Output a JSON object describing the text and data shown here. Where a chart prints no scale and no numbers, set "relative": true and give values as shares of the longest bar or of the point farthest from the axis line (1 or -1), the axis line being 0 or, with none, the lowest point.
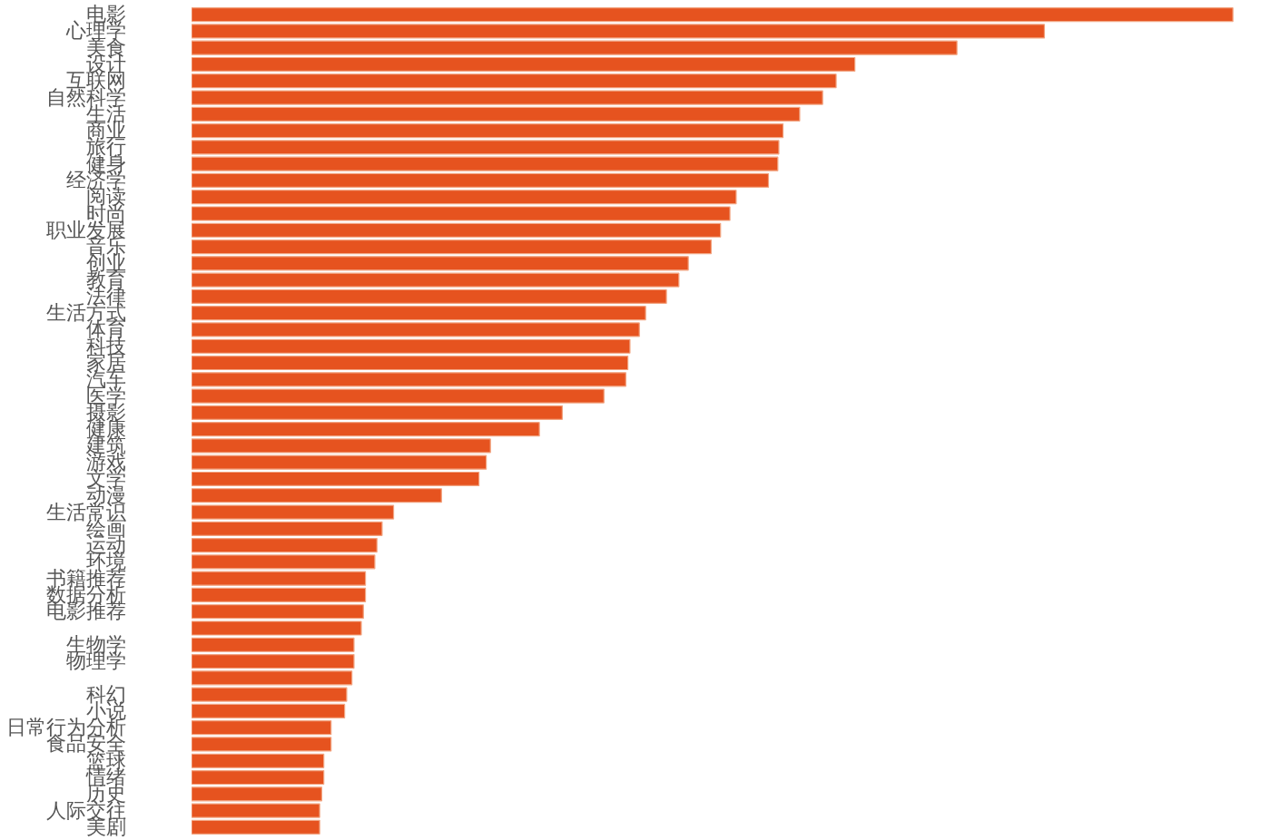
{
  "chart_data": {
    "type": "bar",
    "orientation": "horizontal",
    "relative": true,
    "color": "#e6531f",
    "grid": false,
    "categories": [
      "电影",
      "心理学",
      "美食",
      "设计",
      "互联网",
      "自然科学",
      "生活",
      "商业",
      "旅行",
      "健身",
      "经济学",
      "阅读",
      "时尚",
      "职业发展",
      "音乐",
      "创业",
      "教育",
      "法律",
      "生活方式",
      "体育",
      "科技",
      "家居",
      "汽车",
      "医学",
      "摄影",
      "健康",
      "建筑",
      "游戏",
      "文学",
      "动漫",
      "生活常识",
      "绘画",
      "运动",
      "环境",
      "书籍推荐",
      "数据分析",
      "电影推荐",
      null,
      "生物学",
      "物理学",
      null,
      "科幻",
      "小说",
      "日常行为分析",
      "食品安全",
      "篮球",
      "情绪",
      "历史",
      "人际交往",
      "美剧"
    ],
    "values": [
      1,
      0.819,
      0.735,
      0.637,
      0.619,
      0.606,
      0.584,
      0.568,
      0.564,
      0.563,
      0.554,
      0.523,
      0.517,
      0.508,
      0.499,
      0.477,
      0.468,
      0.456,
      0.436,
      0.43,
      0.421,
      0.419,
      0.417,
      0.396,
      0.356,
      0.334,
      0.287,
      0.283,
      0.276,
      0.24,
      0.194,
      0.183,
      0.178,
      0.176,
      0.167,
      0.167,
      0.165,
      0.163,
      0.156,
      0.156,
      0.154,
      0.149,
      0.147,
      0.134,
      0.134,
      0.127,
      0.127,
      0.125,
      0.123,
      0.123
    ]
  }
}
